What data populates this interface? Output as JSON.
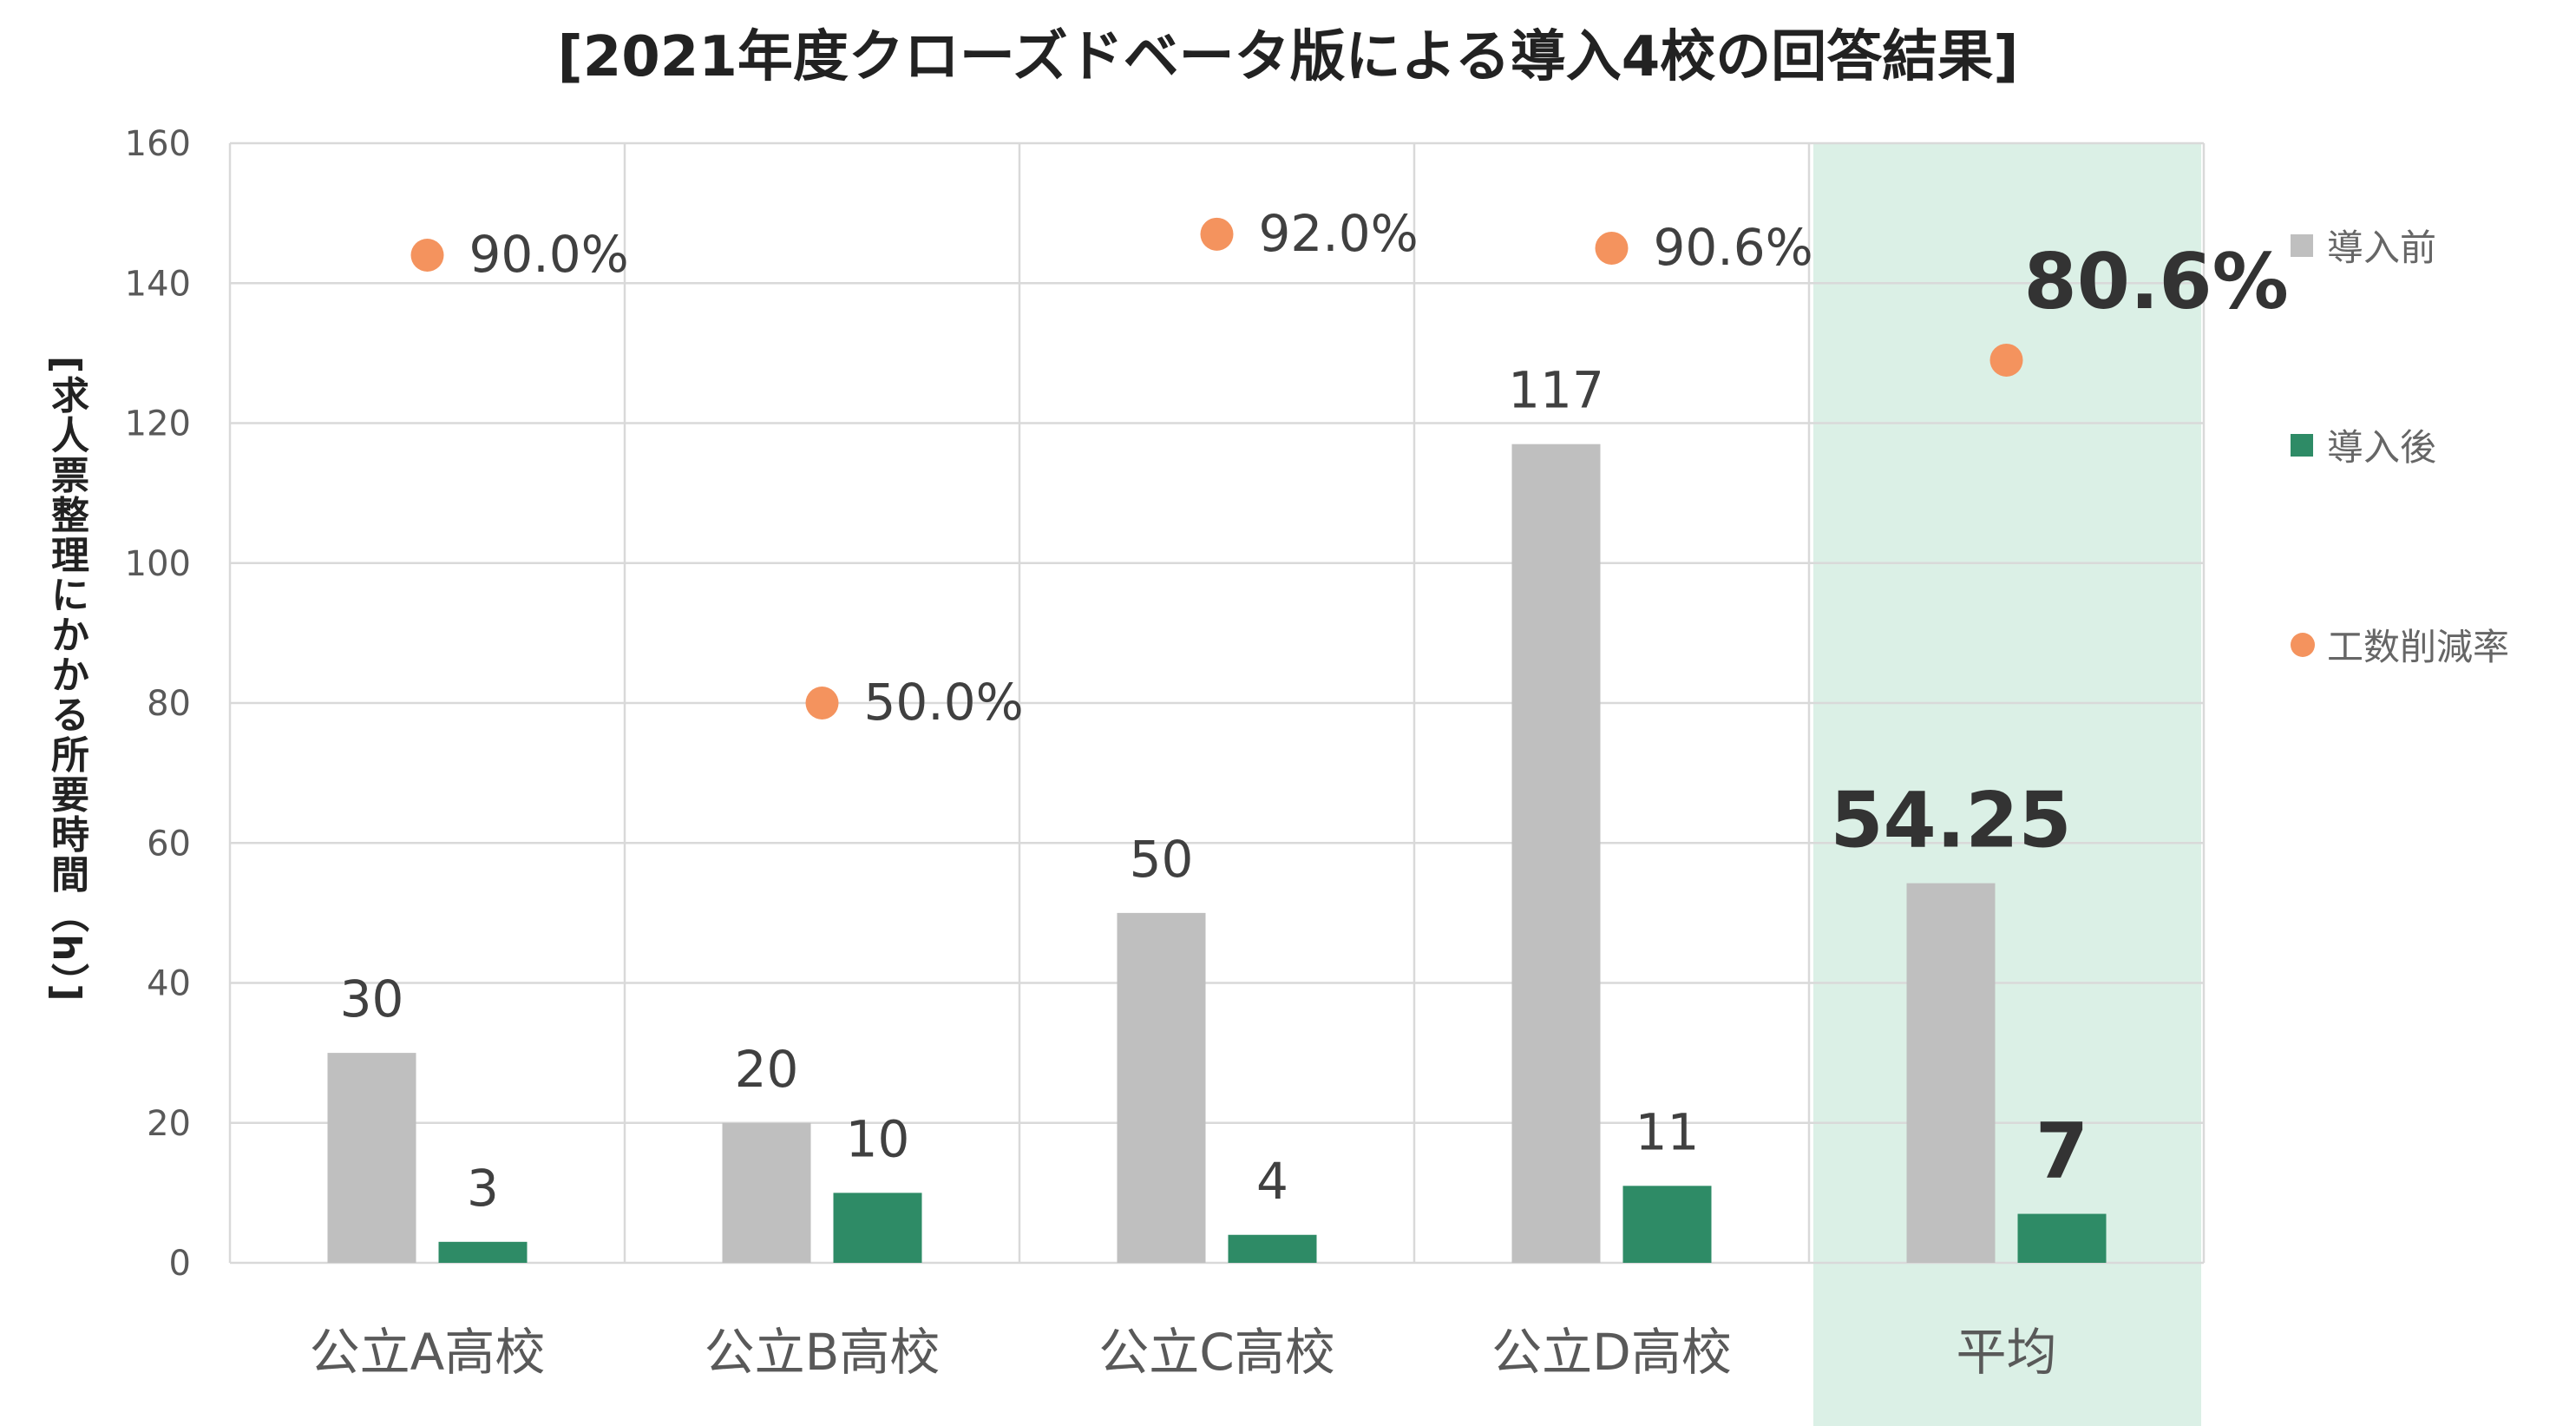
{
  "colors": {
    "before": "#bfbfbf",
    "after": "#2e8b66",
    "rate": "#f4935e",
    "highlight": "#dbf0e6",
    "grid": "#d9d9d9",
    "tick_text": "#595959",
    "label_text": "#404040"
  },
  "chart_data": {
    "type": "bar",
    "title": "[2021年度クローズドベータ版による導入4校の回答結果]",
    "ylabel": "[求人票整理にかかる所要時間（h）]",
    "xlabel": "",
    "ylim": [
      0,
      160
    ],
    "yticks": [
      "0",
      "20",
      "40",
      "60",
      "80",
      "100",
      "120",
      "140",
      "160"
    ],
    "categories": [
      "公立A高校",
      "公立B高校",
      "公立C高校",
      "公立D高校",
      "平均"
    ],
    "highlight_category": "平均",
    "series": [
      {
        "name": "導入前",
        "kind": "bar",
        "values": [
          30,
          20,
          50,
          117,
          54.25
        ],
        "labels": [
          "30",
          "20",
          "50",
          "117",
          "54.25"
        ]
      },
      {
        "name": "導入後",
        "kind": "bar",
        "values": [
          3,
          10,
          4,
          11,
          7
        ],
        "labels": [
          "3",
          "10",
          "4",
          "11",
          "7"
        ]
      },
      {
        "name": "工数削減率",
        "kind": "scatter",
        "values": [
          144,
          80,
          147,
          145,
          129
        ],
        "labels": [
          "90.0%",
          "50.0%",
          "92.0%",
          "90.6%",
          "80.6%"
        ]
      }
    ],
    "grid": true,
    "legend_position": "right"
  }
}
